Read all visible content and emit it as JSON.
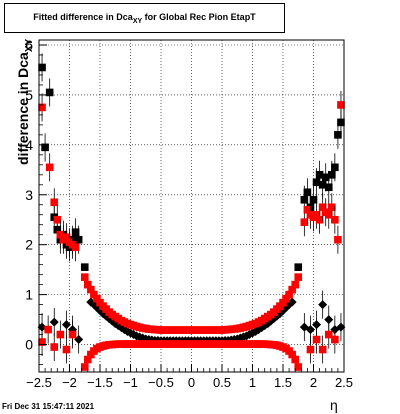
{
  "window": {
    "title_main": "Fitted difference in Dca",
    "title_sub": "XY",
    "title_rest": " for Global Rec Pion EtapT",
    "timestamp": "Fri Dec 31 15:47:11 2021"
  },
  "chart_data": {
    "type": "scatter",
    "title": "Fitted difference in Dca_XY for Global Rec Pion EtapT",
    "xlabel": "η",
    "ylabel_main": "difference in Dca",
    "ylabel_sub": "XY",
    "xlim": [
      -2.5,
      2.5
    ],
    "ylim": [
      -0.55,
      6.1
    ],
    "grid": true,
    "x_ticks": [
      "−2.5",
      "−2",
      "−1.5",
      "−1",
      "−0.5",
      "0",
      "0.5",
      "1",
      "1.5",
      "2",
      "2.5"
    ],
    "x_tick_values": [
      -2.5,
      -2,
      -1.5,
      -1,
      -0.5,
      0,
      0.5,
      1,
      1.5,
      2,
      2.5
    ],
    "y_ticks": [
      "0",
      "1",
      "2",
      "3",
      "4",
      "5",
      "6"
    ],
    "y_tick_values": [
      0,
      1,
      2,
      3,
      4,
      5,
      6
    ],
    "colors": {
      "black_series": "#000000",
      "red_series": "#ff0000",
      "error": "#000000"
    },
    "series": [
      {
        "color": "#000000",
        "marker": "square",
        "points": [
          [
            -2.45,
            5.55
          ],
          [
            -2.4,
            3.95
          ],
          [
            -2.325,
            5.05
          ],
          [
            -2.25,
            2.55
          ],
          [
            -2.2,
            2.3
          ],
          [
            -2.15,
            2.1
          ],
          [
            -2.1,
            2.2
          ],
          [
            -2.05,
            2.0
          ],
          [
            -2.0,
            1.95
          ],
          [
            -1.95,
            2.1
          ],
          [
            -1.9,
            2.25
          ],
          [
            -1.85,
            2.1
          ],
          [
            -1.75,
            1.55
          ],
          [
            1.75,
            1.55
          ],
          [
            1.85,
            2.9
          ],
          [
            1.9,
            3.05
          ],
          [
            1.95,
            2.75
          ],
          [
            2.0,
            2.9
          ],
          [
            2.05,
            3.25
          ],
          [
            2.1,
            3.4
          ],
          [
            2.15,
            3.2
          ],
          [
            2.2,
            3.35
          ],
          [
            2.25,
            3.15
          ],
          [
            2.3,
            3.4
          ],
          [
            2.35,
            3.55
          ],
          [
            2.4,
            4.2
          ],
          [
            2.45,
            4.45
          ]
        ]
      },
      {
        "color": "#000000",
        "marker": "diamond",
        "points": [
          [
            -2.45,
            0.35
          ],
          [
            -2.25,
            0.45
          ],
          [
            -2.05,
            0.4
          ],
          [
            -1.95,
            0.3
          ],
          [
            -1.85,
            0.1
          ],
          [
            -1.65,
            0.85
          ],
          [
            -1.6,
            0.8
          ],
          [
            -1.55,
            0.74
          ],
          [
            -1.5,
            0.68
          ],
          [
            -1.45,
            0.62
          ],
          [
            -1.4,
            0.57
          ],
          [
            -1.35,
            0.52
          ],
          [
            -1.3,
            0.47
          ],
          [
            -1.25,
            0.42
          ],
          [
            -1.2,
            0.38
          ],
          [
            -1.15,
            0.34
          ],
          [
            -1.1,
            0.3
          ],
          [
            -1.05,
            0.26
          ],
          [
            -1.0,
            0.23
          ],
          [
            -0.95,
            0.2
          ],
          [
            -0.9,
            0.17
          ],
          [
            -0.85,
            0.15
          ],
          [
            -0.8,
            0.13
          ],
          [
            -0.75,
            0.11
          ],
          [
            -0.7,
            0.1
          ],
          [
            -0.65,
            0.09
          ],
          [
            -0.6,
            0.08
          ],
          [
            -0.55,
            0.08
          ],
          [
            -0.5,
            0.075
          ],
          [
            -0.45,
            0.075
          ],
          [
            -0.4,
            0.075
          ],
          [
            -0.35,
            0.075
          ],
          [
            -0.3,
            0.075
          ],
          [
            -0.25,
            0.075
          ],
          [
            -0.2,
            0.075
          ],
          [
            -0.15,
            0.075
          ],
          [
            -0.1,
            0.075
          ],
          [
            -0.05,
            0.075
          ],
          [
            0.0,
            0.075
          ],
          [
            0.05,
            0.075
          ],
          [
            0.1,
            0.075
          ],
          [
            0.15,
            0.075
          ],
          [
            0.2,
            0.075
          ],
          [
            0.25,
            0.075
          ],
          [
            0.3,
            0.075
          ],
          [
            0.35,
            0.075
          ],
          [
            0.4,
            0.075
          ],
          [
            0.45,
            0.075
          ],
          [
            0.5,
            0.075
          ],
          [
            0.55,
            0.08
          ],
          [
            0.6,
            0.08
          ],
          [
            0.65,
            0.09
          ],
          [
            0.7,
            0.1
          ],
          [
            0.75,
            0.11
          ],
          [
            0.8,
            0.13
          ],
          [
            0.85,
            0.15
          ],
          [
            0.9,
            0.17
          ],
          [
            0.95,
            0.2
          ],
          [
            1.0,
            0.23
          ],
          [
            1.05,
            0.26
          ],
          [
            1.1,
            0.3
          ],
          [
            1.15,
            0.34
          ],
          [
            1.2,
            0.38
          ],
          [
            1.25,
            0.42
          ],
          [
            1.3,
            0.47
          ],
          [
            1.35,
            0.52
          ],
          [
            1.4,
            0.57
          ],
          [
            1.45,
            0.62
          ],
          [
            1.5,
            0.68
          ],
          [
            1.55,
            0.74
          ],
          [
            1.6,
            0.8
          ],
          [
            1.65,
            0.85
          ],
          [
            1.85,
            0.35
          ],
          [
            1.95,
            0.3
          ],
          [
            2.05,
            0.4
          ],
          [
            2.15,
            0.8
          ],
          [
            2.25,
            0.5
          ],
          [
            2.35,
            0.3
          ],
          [
            2.45,
            0.35
          ]
        ]
      },
      {
        "color": "#ff0000",
        "marker": "square",
        "points": [
          [
            -2.45,
            4.75
          ],
          [
            -2.325,
            3.55
          ],
          [
            -2.25,
            2.85
          ],
          [
            -2.2,
            2.5
          ],
          [
            -2.15,
            2.2
          ],
          [
            -2.1,
            2.1
          ],
          [
            -2.05,
            2.15
          ],
          [
            -2.0,
            2.05
          ],
          [
            -1.95,
            2.0
          ],
          [
            -1.9,
            1.95
          ],
          [
            -1.75,
            1.35
          ],
          [
            -1.7,
            1.2
          ],
          [
            -1.65,
            1.1
          ],
          [
            -1.6,
            1.0
          ],
          [
            -1.55,
            0.92
          ],
          [
            -1.5,
            0.84
          ],
          [
            -1.45,
            0.77
          ],
          [
            -1.4,
            0.71
          ],
          [
            -1.35,
            0.65
          ],
          [
            -1.3,
            0.6
          ],
          [
            -1.25,
            0.56
          ],
          [
            -1.2,
            0.52
          ],
          [
            -1.15,
            0.48
          ],
          [
            -1.1,
            0.45
          ],
          [
            -1.05,
            0.42
          ],
          [
            -1.0,
            0.4
          ],
          [
            -0.95,
            0.38
          ],
          [
            -0.9,
            0.36
          ],
          [
            -0.85,
            0.345
          ],
          [
            -0.8,
            0.33
          ],
          [
            -0.75,
            0.32
          ],
          [
            -0.7,
            0.31
          ],
          [
            -0.65,
            0.305
          ],
          [
            -0.6,
            0.3
          ],
          [
            -0.55,
            0.295
          ],
          [
            -0.5,
            0.29
          ],
          [
            -0.45,
            0.29
          ],
          [
            -0.4,
            0.29
          ],
          [
            -0.35,
            0.29
          ],
          [
            -0.3,
            0.29
          ],
          [
            -0.25,
            0.29
          ],
          [
            -0.2,
            0.29
          ],
          [
            -0.15,
            0.29
          ],
          [
            -0.1,
            0.29
          ],
          [
            -0.05,
            0.29
          ],
          [
            0.0,
            0.29
          ],
          [
            0.05,
            0.29
          ],
          [
            0.1,
            0.29
          ],
          [
            0.15,
            0.29
          ],
          [
            0.2,
            0.29
          ],
          [
            0.25,
            0.29
          ],
          [
            0.3,
            0.29
          ],
          [
            0.35,
            0.29
          ],
          [
            0.4,
            0.29
          ],
          [
            0.45,
            0.29
          ],
          [
            0.5,
            0.29
          ],
          [
            0.55,
            0.295
          ],
          [
            0.6,
            0.3
          ],
          [
            0.65,
            0.305
          ],
          [
            0.7,
            0.31
          ],
          [
            0.75,
            0.32
          ],
          [
            0.8,
            0.33
          ],
          [
            0.85,
            0.345
          ],
          [
            0.9,
            0.36
          ],
          [
            0.95,
            0.38
          ],
          [
            1.0,
            0.4
          ],
          [
            1.05,
            0.42
          ],
          [
            1.1,
            0.45
          ],
          [
            1.15,
            0.48
          ],
          [
            1.2,
            0.52
          ],
          [
            1.25,
            0.56
          ],
          [
            1.3,
            0.6
          ],
          [
            1.35,
            0.65
          ],
          [
            1.4,
            0.71
          ],
          [
            1.45,
            0.77
          ],
          [
            1.5,
            0.84
          ],
          [
            1.55,
            0.92
          ],
          [
            1.6,
            1.0
          ],
          [
            1.65,
            1.1
          ],
          [
            1.7,
            1.2
          ],
          [
            1.75,
            1.35
          ],
          [
            1.85,
            2.45
          ],
          [
            1.9,
            2.7
          ],
          [
            1.95,
            2.6
          ],
          [
            2.0,
            2.55
          ],
          [
            2.05,
            2.6
          ],
          [
            2.1,
            2.5
          ],
          [
            2.15,
            2.75
          ],
          [
            2.2,
            2.65
          ],
          [
            2.25,
            2.6
          ],
          [
            2.3,
            2.75
          ],
          [
            2.35,
            2.5
          ],
          [
            2.45,
            4.8
          ]
        ]
      },
      {
        "color": "#ff0000",
        "marker": "square",
        "points": [
          [
            -1.75,
            -0.45
          ],
          [
            -1.7,
            -0.3
          ],
          [
            -1.65,
            -0.2
          ],
          [
            -1.6,
            -0.13
          ],
          [
            -1.55,
            -0.08
          ],
          [
            -1.5,
            -0.05
          ],
          [
            -1.45,
            -0.03
          ],
          [
            -1.4,
            -0.015
          ],
          [
            -1.35,
            -0.005
          ],
          [
            -1.3,
            0.0
          ],
          [
            -1.25,
            0.005
          ],
          [
            -1.2,
            0.01
          ],
          [
            -1.15,
            0.01
          ],
          [
            -1.1,
            0.01
          ],
          [
            -1.05,
            0.01
          ],
          [
            -1.0,
            0.01
          ],
          [
            -0.95,
            0.01
          ],
          [
            -0.9,
            0.01
          ],
          [
            -0.85,
            0.01
          ],
          [
            -0.8,
            0.01
          ],
          [
            -0.75,
            0.01
          ],
          [
            -0.7,
            0.01
          ],
          [
            -0.65,
            0.01
          ],
          [
            -0.6,
            0.01
          ],
          [
            -0.55,
            0.01
          ],
          [
            -0.5,
            0.01
          ],
          [
            -0.45,
            0.01
          ],
          [
            -0.4,
            0.01
          ],
          [
            -0.35,
            0.01
          ],
          [
            -0.3,
            0.01
          ],
          [
            -0.25,
            0.01
          ],
          [
            -0.2,
            0.01
          ],
          [
            -0.15,
            0.01
          ],
          [
            -0.1,
            0.01
          ],
          [
            -0.05,
            0.01
          ],
          [
            0.0,
            0.01
          ],
          [
            0.05,
            0.01
          ],
          [
            0.1,
            0.01
          ],
          [
            0.15,
            0.01
          ],
          [
            0.2,
            0.01
          ],
          [
            0.25,
            0.01
          ],
          [
            0.3,
            0.01
          ],
          [
            0.35,
            0.01
          ],
          [
            0.4,
            0.01
          ],
          [
            0.45,
            0.01
          ],
          [
            0.5,
            0.01
          ],
          [
            0.55,
            0.01
          ],
          [
            0.6,
            0.01
          ],
          [
            0.65,
            0.01
          ],
          [
            0.7,
            0.01
          ],
          [
            0.75,
            0.01
          ],
          [
            0.8,
            0.01
          ],
          [
            0.85,
            0.01
          ],
          [
            0.9,
            0.01
          ],
          [
            0.95,
            0.01
          ],
          [
            1.0,
            0.01
          ],
          [
            1.05,
            0.01
          ],
          [
            1.1,
            0.01
          ],
          [
            1.15,
            0.01
          ],
          [
            1.2,
            0.01
          ],
          [
            1.25,
            0.005
          ],
          [
            1.3,
            0.0
          ],
          [
            1.35,
            -0.005
          ],
          [
            1.4,
            -0.015
          ],
          [
            1.45,
            -0.03
          ],
          [
            1.5,
            -0.05
          ],
          [
            1.55,
            -0.08
          ],
          [
            1.6,
            -0.13
          ],
          [
            1.65,
            -0.2
          ],
          [
            1.7,
            -0.3
          ],
          [
            1.75,
            -0.45
          ],
          [
            -2.45,
            0.05
          ],
          [
            -2.35,
            0.3
          ],
          [
            -2.25,
            -0.05
          ],
          [
            -2.15,
            0.2
          ],
          [
            -2.05,
            -0.1
          ],
          [
            -1.95,
            0.2
          ],
          [
            1.95,
            -0.1
          ],
          [
            2.05,
            0.1
          ],
          [
            2.15,
            -0.1
          ],
          [
            2.25,
            0.2
          ],
          [
            2.35,
            0.1
          ],
          [
            2.4,
            2.1
          ]
        ]
      }
    ]
  }
}
